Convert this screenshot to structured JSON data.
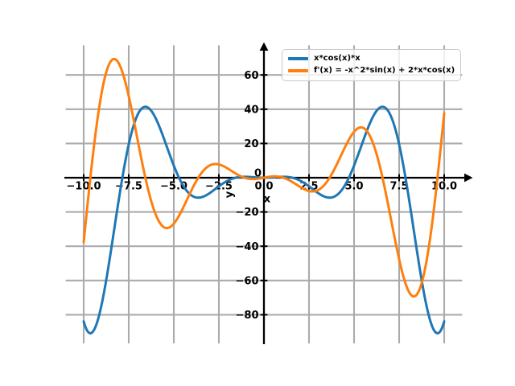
{
  "chart_data": {
    "type": "line",
    "title": "",
    "xlabel": "x",
    "ylabel": "y",
    "xlim": [
      -11,
      11
    ],
    "ylim": [
      -96.7,
      77.3
    ],
    "grid": true,
    "grid_color": "#ababab",
    "axis_color": "#000000",
    "axes_style": {
      "spines_through_origin": true,
      "arrow_positive_x": true,
      "arrow_positive_y": true,
      "tick_direction": "inout"
    },
    "x_ticks": {
      "values": [
        -10,
        -7.5,
        -5,
        -2.5,
        0,
        2.5,
        5,
        7.5,
        10
      ],
      "labels": [
        "−10.0",
        "−7.5",
        "−5.0",
        "−2.5",
        "0.0",
        "2.5",
        "5.0",
        "7.5",
        "10.0"
      ]
    },
    "y_ticks": {
      "values": [
        -80,
        -60,
        -40,
        -20,
        0,
        20,
        40,
        60
      ],
      "labels": [
        "−80",
        "−60",
        "−40",
        "−20",
        "0",
        "20",
        "40",
        "60"
      ]
    },
    "legend": {
      "location": "upper right of y-axis",
      "border_color": "#c9c9c9",
      "background": "rgba(255,255,255,0.8)"
    },
    "series": [
      {
        "label": "x*cos(x)*x",
        "formula": "x^2*cos(x)",
        "color": "#1f77b4",
        "line_width": 3,
        "x_range": [
          -10,
          10
        ],
        "sample_step": 0.02,
        "notable_points": [
          [
            -10,
            -83.91
          ],
          [
            -9.42,
            -88.83
          ],
          [
            -6.59,
            41.4
          ],
          [
            -3.65,
            -11.64
          ],
          [
            0,
            0
          ],
          [
            3.65,
            -11.64
          ],
          [
            6.59,
            41.4
          ],
          [
            9.42,
            -88.83
          ],
          [
            10,
            -83.91
          ]
        ]
      },
      {
        "label": "f'(x) = -x^2*sin(x) + 2*x*cos(x)",
        "formula": "-x^2*sin(x)+2*x*cos(x)",
        "color": "#ff7f0e",
        "line_width": 3,
        "x_range": [
          -10,
          10
        ],
        "sample_step": 0.02,
        "notable_points": [
          [
            -10,
            -37.62
          ],
          [
            -8.33,
            69.4
          ],
          [
            -6.44,
            0
          ],
          [
            -5.17,
            -28.6
          ],
          [
            -2.6,
            7.94
          ],
          [
            0,
            0
          ],
          [
            2.6,
            -7.94
          ],
          [
            5.17,
            28.6
          ],
          [
            8.33,
            -69.4
          ],
          [
            10,
            37.62
          ]
        ]
      }
    ]
  }
}
